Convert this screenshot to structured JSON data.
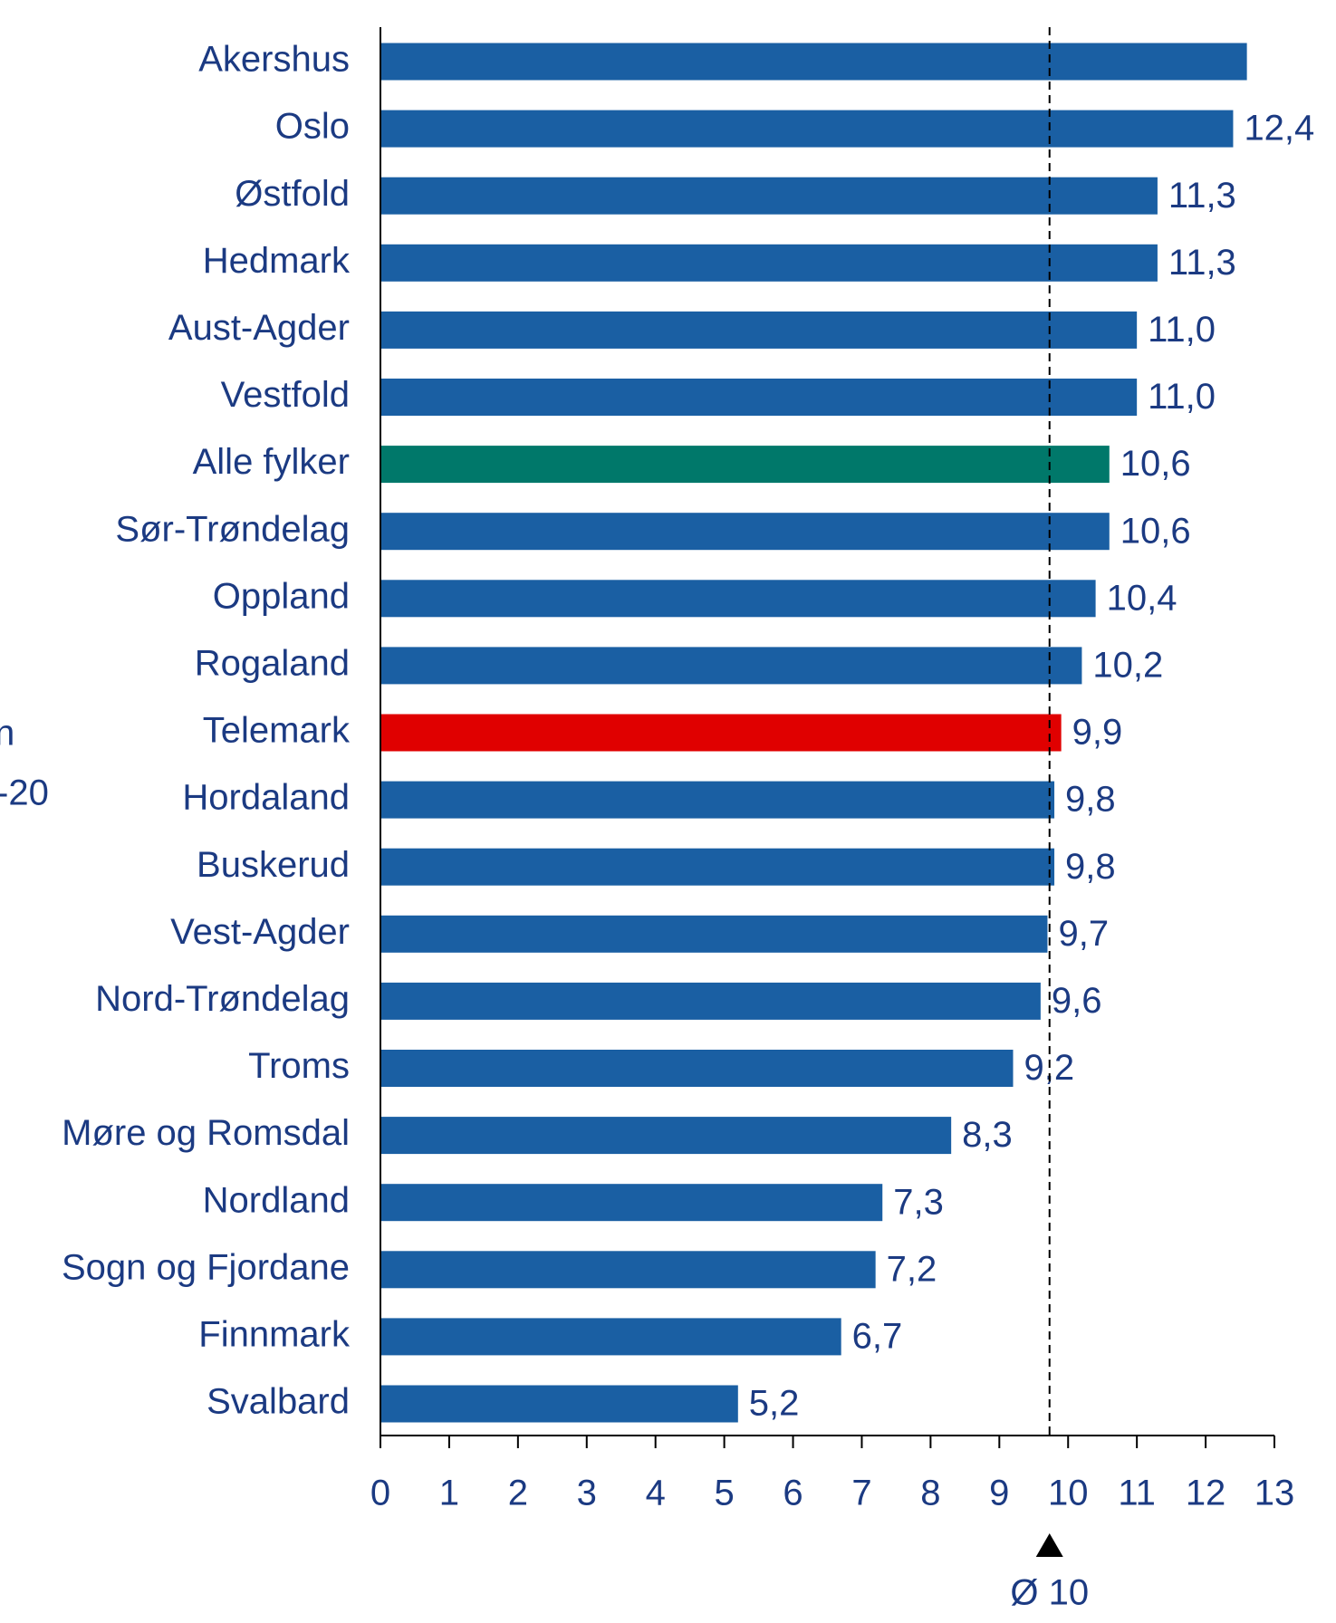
{
  "chart_data": {
    "type": "barh",
    "categories": [
      "Akershus",
      "Oslo",
      "Østfold",
      "Hedmark",
      "Aust-Agder",
      "Vestfold",
      "Alle fylker",
      "Sør-Trøndelag",
      "Oppland",
      "Rogaland",
      "Telemark",
      "Hordaland",
      "Buskerud",
      "Vest-Agder",
      "Nord-Trøndelag",
      "Troms",
      "Møre og Romsdal",
      "Nordland",
      "Sogn og Fjordane",
      "Finnmark",
      "Svalbard"
    ],
    "values": [
      12.6,
      12.4,
      11.3,
      11.3,
      11.0,
      11.0,
      10.6,
      10.6,
      10.4,
      10.2,
      9.9,
      9.8,
      9.8,
      9.7,
      9.6,
      9.2,
      8.3,
      7.3,
      7.2,
      6.7,
      5.2
    ],
    "value_labels": [
      null,
      "12,4",
      "11,3",
      "11,3",
      "11,0",
      "11,0",
      "10,6",
      "10,6",
      "10,4",
      "10,2",
      "9,9",
      "9,8",
      "9,8",
      "9,7",
      "9,6",
      "9,2",
      "8,3",
      "7,3",
      "7,2",
      "6,7",
      "5,2"
    ],
    "colors": [
      "#1a5fa3",
      "#1a5fa3",
      "#1a5fa3",
      "#1a5fa3",
      "#1a5fa3",
      "#1a5fa3",
      "#00786a",
      "#1a5fa3",
      "#1a5fa3",
      "#1a5fa3",
      "#e00000",
      "#1a5fa3",
      "#1a5fa3",
      "#1a5fa3",
      "#1a5fa3",
      "#1a5fa3",
      "#1a5fa3",
      "#1a5fa3",
      "#1a5fa3",
      "#1a5fa3",
      "#1a5fa3"
    ],
    "xlim": [
      0,
      13
    ],
    "xticks": [
      0,
      1,
      2,
      3,
      4,
      5,
      6,
      7,
      8,
      9,
      10,
      11,
      12,
      13
    ],
    "reference_line": {
      "value": 9.73,
      "label": "Ø 10"
    },
    "cut_off_texts": [
      "n",
      "-20"
    ]
  }
}
